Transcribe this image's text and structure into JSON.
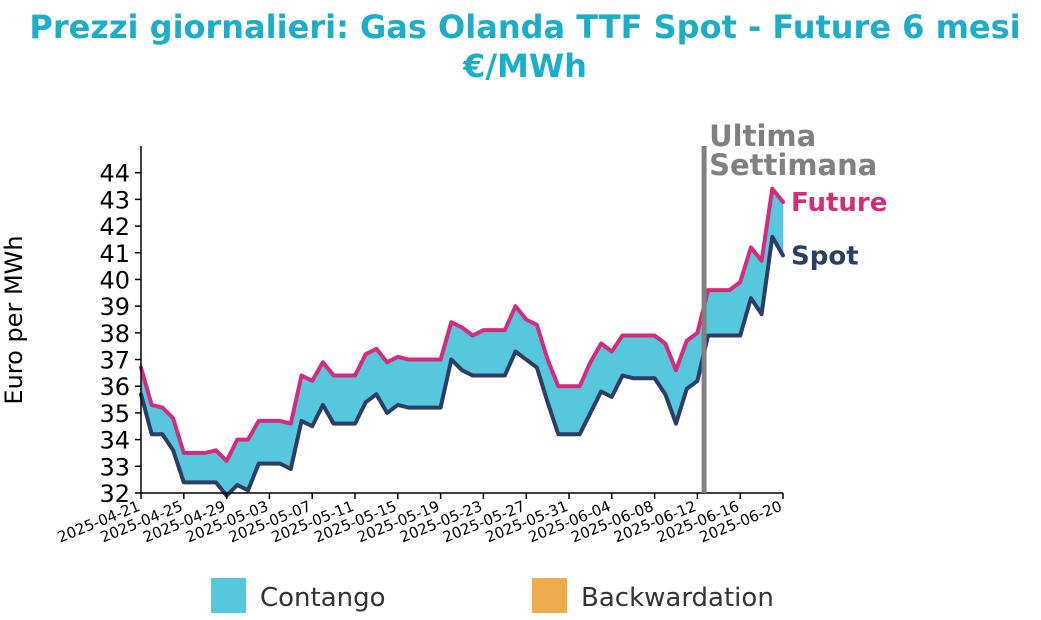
{
  "chart_data": {
    "type": "line",
    "title_lines": [
      "Prezzi giornalieri: Gas Olanda TTF Spot - Future 6 mesi",
      "€/MWh"
    ],
    "ylabel": "Euro per MWh",
    "xlabel": "",
    "ylim": [
      32,
      45
    ],
    "yticks": [
      32,
      33,
      34,
      35,
      36,
      37,
      38,
      39,
      40,
      41,
      42,
      43,
      44
    ],
    "x_start": "2025-04-21",
    "x_end": "2025-06-20",
    "xticks": [
      "2025-04-21",
      "2025-04-25",
      "2025-04-29",
      "2025-05-03",
      "2025-05-07",
      "2025-05-11",
      "2025-05-15",
      "2025-05-19",
      "2025-05-23",
      "2025-05-27",
      "2025-05-31",
      "2025-06-04",
      "2025-06-08",
      "2025-06-12",
      "2025-06-16",
      "2025-06-20"
    ],
    "series": [
      {
        "name": "Future",
        "color": "#d62b7b",
        "points": [
          [
            "2025-04-21",
            36.7
          ],
          [
            "2025-04-22",
            35.3
          ],
          [
            "2025-04-23",
            35.2
          ],
          [
            "2025-04-24",
            34.8
          ],
          [
            "2025-04-25",
            33.5
          ],
          [
            "2025-04-26",
            33.5
          ],
          [
            "2025-04-27",
            33.5
          ],
          [
            "2025-04-28",
            33.6
          ],
          [
            "2025-04-29",
            33.2
          ],
          [
            "2025-04-30",
            34.0
          ],
          [
            "2025-05-01",
            34.0
          ],
          [
            "2025-05-02",
            34.7
          ],
          [
            "2025-05-03",
            34.7
          ],
          [
            "2025-05-04",
            34.7
          ],
          [
            "2025-05-05",
            34.6
          ],
          [
            "2025-05-06",
            36.4
          ],
          [
            "2025-05-07",
            36.2
          ],
          [
            "2025-05-08",
            36.9
          ],
          [
            "2025-05-09",
            36.4
          ],
          [
            "2025-05-10",
            36.4
          ],
          [
            "2025-05-11",
            36.4
          ],
          [
            "2025-05-12",
            37.2
          ],
          [
            "2025-05-13",
            37.4
          ],
          [
            "2025-05-14",
            36.9
          ],
          [
            "2025-05-15",
            37.1
          ],
          [
            "2025-05-16",
            37.0
          ],
          [
            "2025-05-17",
            37.0
          ],
          [
            "2025-05-18",
            37.0
          ],
          [
            "2025-05-19",
            37.0
          ],
          [
            "2025-05-20",
            38.4
          ],
          [
            "2025-05-21",
            38.2
          ],
          [
            "2025-05-22",
            37.9
          ],
          [
            "2025-05-23",
            38.1
          ],
          [
            "2025-05-24",
            38.1
          ],
          [
            "2025-05-25",
            38.1
          ],
          [
            "2025-05-26",
            39.0
          ],
          [
            "2025-05-27",
            38.5
          ],
          [
            "2025-05-28",
            38.3
          ],
          [
            "2025-05-29",
            37.0
          ],
          [
            "2025-05-30",
            36.0
          ],
          [
            "2025-05-31",
            36.0
          ],
          [
            "2025-06-01",
            36.0
          ],
          [
            "2025-06-02",
            36.9
          ],
          [
            "2025-06-03",
            37.6
          ],
          [
            "2025-06-04",
            37.3
          ],
          [
            "2025-06-05",
            37.9
          ],
          [
            "2025-06-06",
            37.9
          ],
          [
            "2025-06-07",
            37.9
          ],
          [
            "2025-06-08",
            37.9
          ],
          [
            "2025-06-09",
            37.6
          ],
          [
            "2025-06-10",
            36.6
          ],
          [
            "2025-06-11",
            37.7
          ],
          [
            "2025-06-12",
            38.0
          ],
          [
            "2025-06-13",
            39.6
          ],
          [
            "2025-06-14",
            39.6
          ],
          [
            "2025-06-15",
            39.6
          ],
          [
            "2025-06-16",
            39.9
          ],
          [
            "2025-06-17",
            41.2
          ],
          [
            "2025-06-18",
            40.7
          ],
          [
            "2025-06-19",
            43.4
          ],
          [
            "2025-06-20",
            42.9
          ]
        ]
      },
      {
        "name": "Spot",
        "color": "#2c3e63",
        "points": [
          [
            "2025-04-21",
            35.7
          ],
          [
            "2025-04-22",
            34.2
          ],
          [
            "2025-04-23",
            34.2
          ],
          [
            "2025-04-24",
            33.6
          ],
          [
            "2025-04-25",
            32.4
          ],
          [
            "2025-04-26",
            32.4
          ],
          [
            "2025-04-27",
            32.4
          ],
          [
            "2025-04-28",
            32.4
          ],
          [
            "2025-04-29",
            31.9
          ],
          [
            "2025-04-30",
            32.3
          ],
          [
            "2025-05-01",
            32.1
          ],
          [
            "2025-05-02",
            33.1
          ],
          [
            "2025-05-03",
            33.1
          ],
          [
            "2025-05-04",
            33.1
          ],
          [
            "2025-05-05",
            32.9
          ],
          [
            "2025-05-06",
            34.7
          ],
          [
            "2025-05-07",
            34.5
          ],
          [
            "2025-05-08",
            35.3
          ],
          [
            "2025-05-09",
            34.6
          ],
          [
            "2025-05-10",
            34.6
          ],
          [
            "2025-05-11",
            34.6
          ],
          [
            "2025-05-12",
            35.4
          ],
          [
            "2025-05-13",
            35.7
          ],
          [
            "2025-05-14",
            35.0
          ],
          [
            "2025-05-15",
            35.3
          ],
          [
            "2025-05-16",
            35.2
          ],
          [
            "2025-05-17",
            35.2
          ],
          [
            "2025-05-18",
            35.2
          ],
          [
            "2025-05-19",
            35.2
          ],
          [
            "2025-05-20",
            37.0
          ],
          [
            "2025-05-21",
            36.6
          ],
          [
            "2025-05-22",
            36.4
          ],
          [
            "2025-05-23",
            36.4
          ],
          [
            "2025-05-24",
            36.4
          ],
          [
            "2025-05-25",
            36.4
          ],
          [
            "2025-05-26",
            37.3
          ],
          [
            "2025-05-27",
            37.0
          ],
          [
            "2025-05-28",
            36.7
          ],
          [
            "2025-05-29",
            35.4
          ],
          [
            "2025-05-30",
            34.2
          ],
          [
            "2025-05-31",
            34.2
          ],
          [
            "2025-06-01",
            34.2
          ],
          [
            "2025-06-02",
            35.0
          ],
          [
            "2025-06-03",
            35.8
          ],
          [
            "2025-06-04",
            35.6
          ],
          [
            "2025-06-05",
            36.4
          ],
          [
            "2025-06-06",
            36.3
          ],
          [
            "2025-06-07",
            36.3
          ],
          [
            "2025-06-08",
            36.3
          ],
          [
            "2025-06-09",
            35.7
          ],
          [
            "2025-06-10",
            34.6
          ],
          [
            "2025-06-11",
            35.9
          ],
          [
            "2025-06-12",
            36.2
          ],
          [
            "2025-06-13",
            37.9
          ],
          [
            "2025-06-14",
            37.9
          ],
          [
            "2025-06-15",
            37.9
          ],
          [
            "2025-06-16",
            37.9
          ],
          [
            "2025-06-17",
            39.3
          ],
          [
            "2025-06-18",
            38.7
          ],
          [
            "2025-06-19",
            41.6
          ],
          [
            "2025-06-20",
            40.9
          ]
        ]
      }
    ],
    "vline": {
      "x": "2025-06-13",
      "label_lines": [
        "Ultima",
        "Settimana"
      ],
      "color": "#808080"
    },
    "fill_colors": {
      "contango": "#57c7dd",
      "backwardation": "#edab4c"
    },
    "legend": {
      "position": "bottom",
      "items": [
        {
          "label": "Contango",
          "color": "#57c7dd"
        },
        {
          "label": "Backwardation",
          "color": "#edab4c"
        }
      ]
    },
    "grid": false
  }
}
